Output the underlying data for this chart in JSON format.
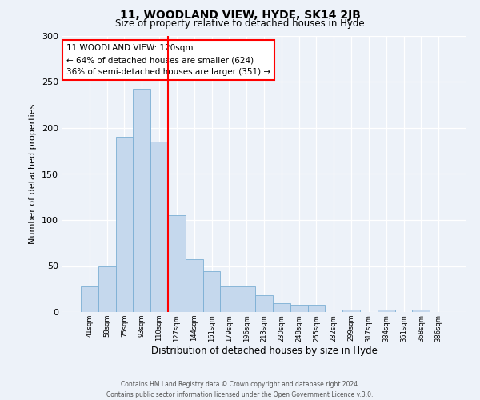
{
  "title": "11, WOODLAND VIEW, HYDE, SK14 2JB",
  "subtitle": "Size of property relative to detached houses in Hyde",
  "xlabel": "Distribution of detached houses by size in Hyde",
  "ylabel": "Number of detached properties",
  "categories": [
    "41sqm",
    "58sqm",
    "75sqm",
    "93sqm",
    "110sqm",
    "127sqm",
    "144sqm",
    "161sqm",
    "179sqm",
    "196sqm",
    "213sqm",
    "230sqm",
    "248sqm",
    "265sqm",
    "282sqm",
    "299sqm",
    "317sqm",
    "334sqm",
    "351sqm",
    "368sqm",
    "386sqm"
  ],
  "values": [
    28,
    50,
    190,
    243,
    185,
    105,
    57,
    44,
    28,
    28,
    18,
    10,
    8,
    8,
    0,
    3,
    0,
    3,
    0,
    3,
    0
  ],
  "bar_color": "#c5d8ed",
  "bar_edge_color": "#7bafd4",
  "vline_x_pos": 4.5,
  "vline_color": "red",
  "annotation_title": "11 WOODLAND VIEW: 120sqm",
  "annotation_line1": "← 64% of detached houses are smaller (624)",
  "annotation_line2": "36% of semi-detached houses are larger (351) →",
  "annotation_box_color": "white",
  "annotation_box_edgecolor": "red",
  "ylim": [
    0,
    300
  ],
  "yticks": [
    0,
    50,
    100,
    150,
    200,
    250,
    300
  ],
  "footer1": "Contains HM Land Registry data © Crown copyright and database right 2024.",
  "footer2": "Contains public sector information licensed under the Open Government Licence v.3.0.",
  "bg_color": "#edf2f9",
  "plot_bg_color": "#edf2f9"
}
